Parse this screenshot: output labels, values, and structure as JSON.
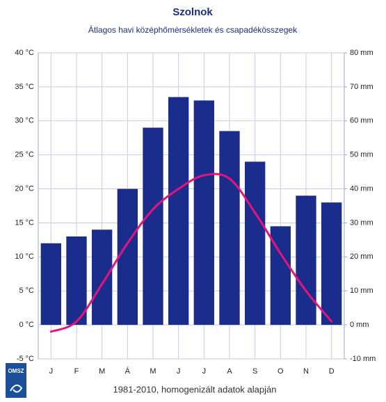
{
  "chart_data": {
    "type": "bar",
    "title": "Szolnok",
    "subtitle": "Átlagos havi középhőmérsékletek és csapadékösszegek",
    "footer": "1981-2010, homogenizált adatok alapján",
    "logo": "OMSZ",
    "categories": [
      "J",
      "F",
      "M",
      "Á",
      "M",
      "J",
      "J",
      "A",
      "S",
      "O",
      "N",
      "D"
    ],
    "series": [
      {
        "type": "bar",
        "axis": "y2",
        "color": "#1b2d8c",
        "values": [
          24,
          26,
          28,
          40,
          58,
          67,
          66,
          57,
          48,
          29,
          38,
          36
        ]
      },
      {
        "type": "line",
        "axis": "y",
        "color": "#e8137a",
        "values": [
          -1,
          0.5,
          6,
          12,
          17,
          20,
          22,
          21.5,
          16.5,
          10.5,
          5,
          0.5
        ]
      }
    ],
    "ylim": [
      -5,
      40
    ],
    "yticks": [
      {
        "value": -5,
        "label": "-5 °C"
      },
      {
        "value": 0,
        "label": "0 °C"
      },
      {
        "value": 5,
        "label": "5 °C"
      },
      {
        "value": 10,
        "label": "10 °C"
      },
      {
        "value": 15,
        "label": "15 °C"
      },
      {
        "value": 20,
        "label": "20 °C"
      },
      {
        "value": 25,
        "label": "25 °C"
      },
      {
        "value": 30,
        "label": "30 °C"
      },
      {
        "value": 35,
        "label": "35 °C"
      },
      {
        "value": 40,
        "label": "40 °C"
      }
    ],
    "y2lim": [
      -10,
      80
    ],
    "y2ticks": [
      {
        "value": -10,
        "label": "-10 mm"
      },
      {
        "value": 0,
        "label": "0 mm"
      },
      {
        "value": 10,
        "label": "10 mm"
      },
      {
        "value": 20,
        "label": "20 mm"
      },
      {
        "value": 30,
        "label": "30 mm"
      },
      {
        "value": 40,
        "label": "40 mm"
      },
      {
        "value": 50,
        "label": "50 mm"
      },
      {
        "value": 60,
        "label": "60 mm"
      },
      {
        "value": 70,
        "label": "70 mm"
      },
      {
        "value": 80,
        "label": "80 mm"
      }
    ],
    "grid": true
  }
}
